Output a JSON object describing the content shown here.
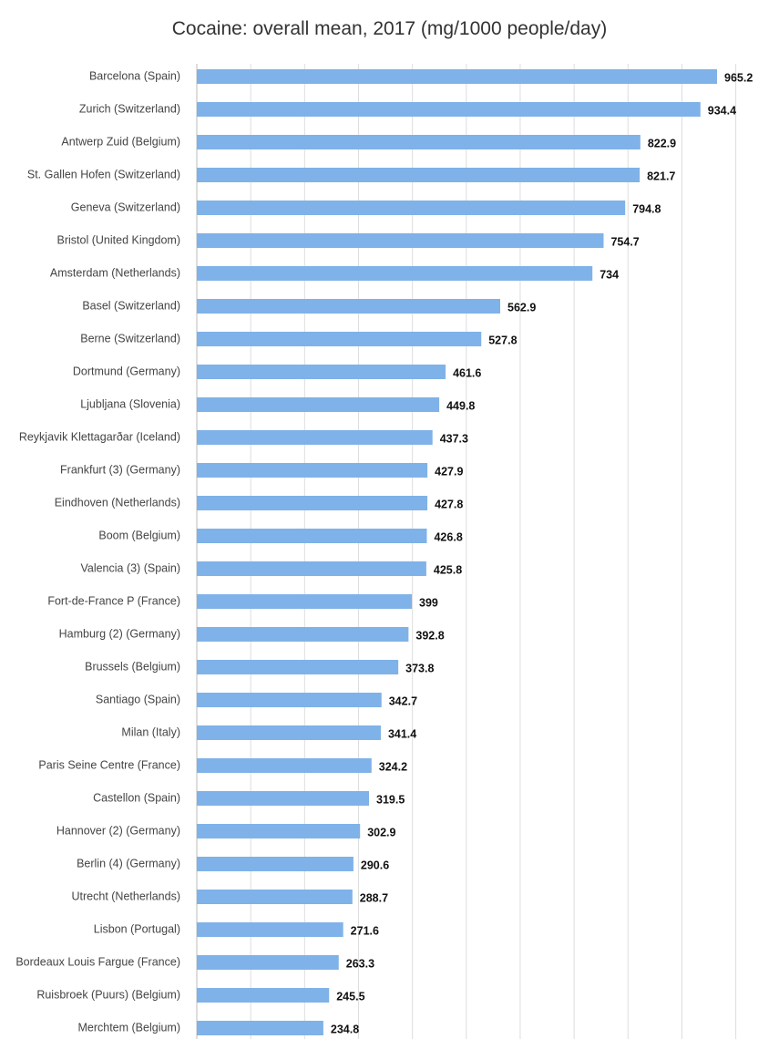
{
  "chart_data": {
    "type": "bar",
    "orientation": "horizontal",
    "title": "Cocaine: overall mean, 2017 (mg/1000 people/day)",
    "xlabel": "",
    "ylabel": "",
    "xlim": [
      0,
      1000
    ],
    "grid": true,
    "bar_color": "#7fb2e8",
    "categories": [
      "Barcelona (Spain)",
      "Zurich (Switzerland)",
      "Antwerp Zuid (Belgium)",
      "St. Gallen Hofen (Switzerland)",
      "Geneva (Switzerland)",
      "Bristol (United Kingdom)",
      "Amsterdam (Netherlands)",
      "Basel (Switzerland)",
      "Berne (Switzerland)",
      "Dortmund (Germany)",
      "Ljubljana (Slovenia)",
      "Reykjavik Klettagarðar (Iceland)",
      "Frankfurt (3) (Germany)",
      "Eindhoven (Netherlands)",
      "Boom (Belgium)",
      "Valencia (3) (Spain)",
      "Fort-de-France P (France)",
      "Hamburg (2) (Germany)",
      "Brussels (Belgium)",
      "Santiago (Spain)",
      "Milan (Italy)",
      "Paris Seine Centre (France)",
      "Castellon (Spain)",
      "Hannover (2) (Germany)",
      "Berlin (4) (Germany)",
      "Utrecht (Netherlands)",
      "Lisbon (Portugal)",
      "Bordeaux Louis Fargue (France)",
      "Ruisbroek (Puurs) (Belgium)",
      "Merchtem (Belgium)"
    ],
    "values": [
      965.2,
      934.4,
      822.9,
      821.7,
      794.8,
      754.7,
      734,
      562.9,
      527.8,
      461.6,
      449.8,
      437.3,
      427.9,
      427.8,
      426.8,
      425.8,
      399,
      392.8,
      373.8,
      342.7,
      341.4,
      324.2,
      319.5,
      302.9,
      290.6,
      288.7,
      271.6,
      263.3,
      245.5,
      234.8
    ],
    "value_labels": [
      "965.2",
      "934.4",
      "822.9",
      "821.7",
      "794.8",
      "754.7",
      "734",
      "562.9",
      "527.8",
      "461.6",
      "449.8",
      "437.3",
      "427.9",
      "427.8",
      "426.8",
      "425.8",
      "399",
      "392.8",
      "373.8",
      "342.7",
      "341.4",
      "324.2",
      "319.5",
      "302.9",
      "290.6",
      "288.7",
      "271.6",
      "263.3",
      "245.5",
      "234.8"
    ]
  }
}
